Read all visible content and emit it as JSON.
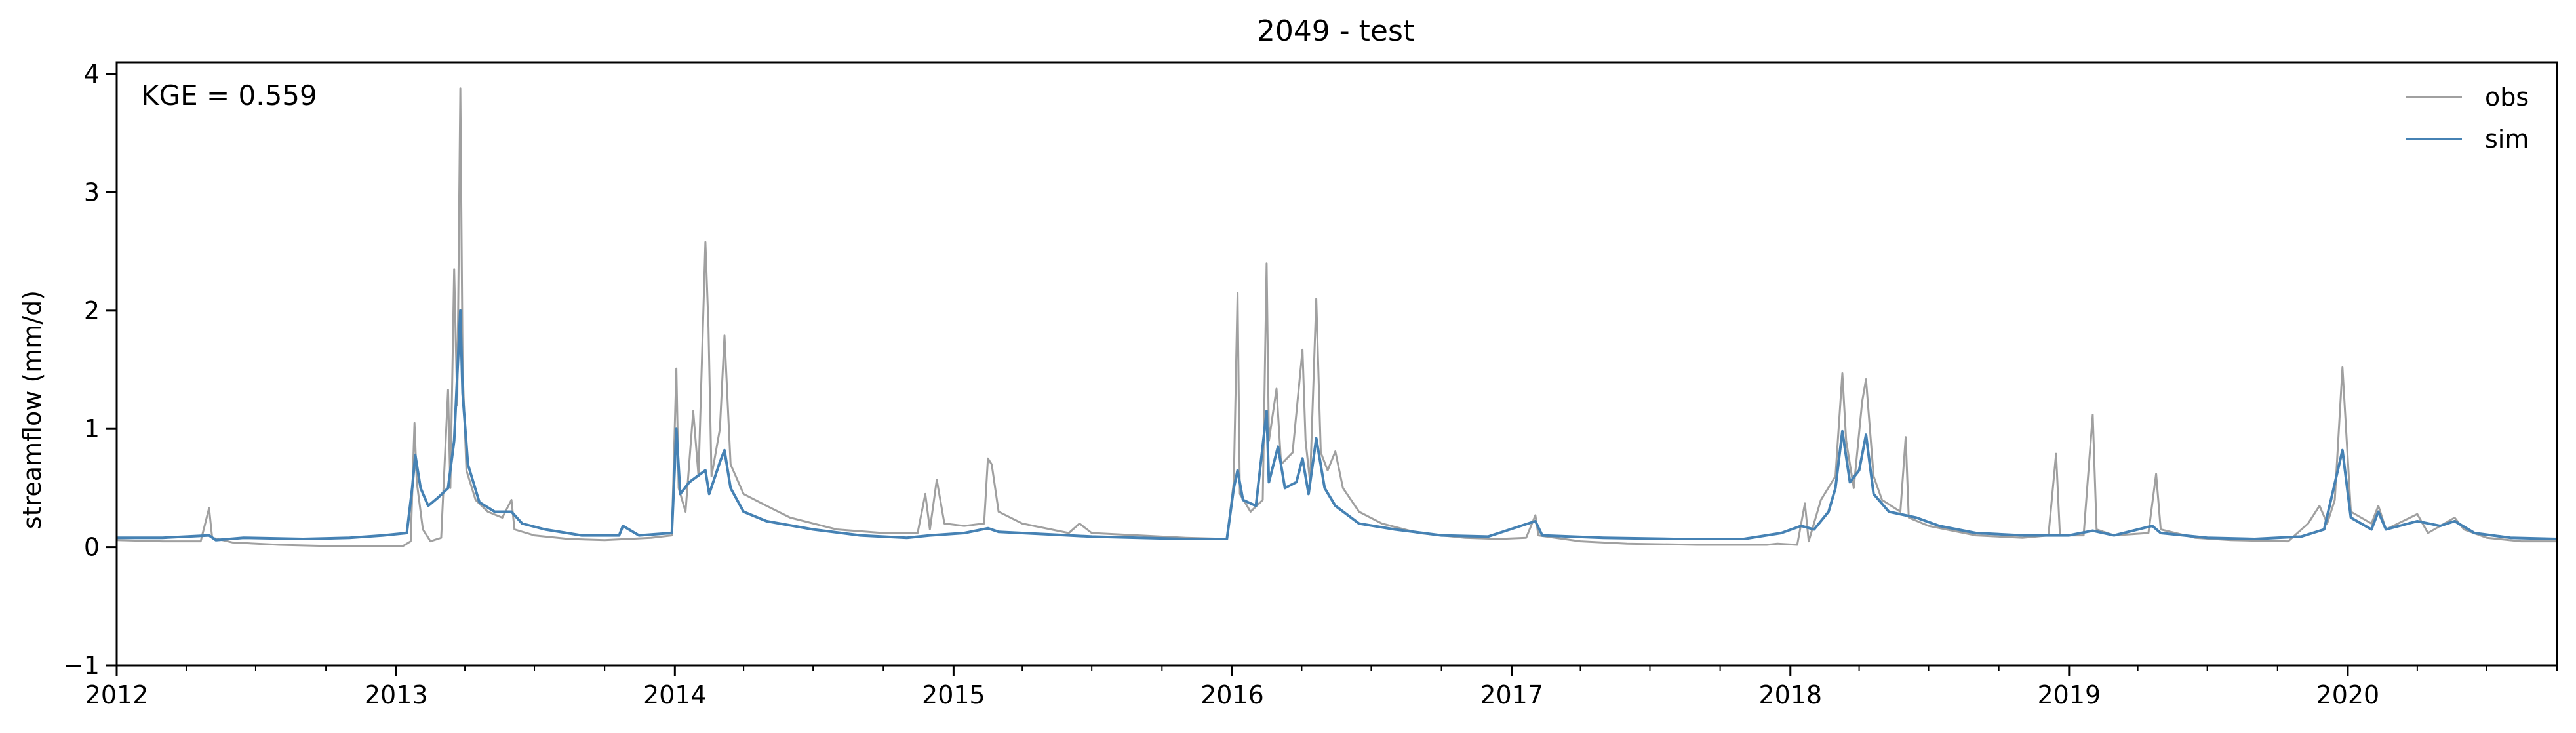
{
  "chart_data": {
    "type": "line",
    "title": "2049 - test",
    "xlabel": "",
    "ylabel": "streamflow (mm/d)",
    "annotation": "KGE = 0.559",
    "xlim": [
      "2012-01-01",
      "2020-10-01"
    ],
    "ylim": [
      -1,
      4.1
    ],
    "x_ticks": [
      "2012",
      "2013",
      "2014",
      "2015",
      "2016",
      "2017",
      "2018",
      "2019",
      "2020"
    ],
    "y_ticks": [
      "−1",
      "0",
      "1",
      "2",
      "3",
      "4"
    ],
    "grid": false,
    "legend_position": "top-right",
    "colors": {
      "obs": "#a0a0a0",
      "sim": "#4682b4"
    },
    "series": [
      {
        "name": "obs",
        "color": "#a0a0a0",
        "points": [
          [
            "2012-01-01",
            0.06
          ],
          [
            "2012-03-01",
            0.05
          ],
          [
            "2012-04-20",
            0.05
          ],
          [
            "2012-05-01",
            0.33
          ],
          [
            "2012-05-05",
            0.08
          ],
          [
            "2012-06-01",
            0.04
          ],
          [
            "2012-08-01",
            0.02
          ],
          [
            "2012-10-01",
            0.01
          ],
          [
            "2012-12-15",
            0.01
          ],
          [
            "2013-01-10",
            0.01
          ],
          [
            "2013-01-20",
            0.05
          ],
          [
            "2013-01-25",
            1.05
          ],
          [
            "2013-01-28",
            0.55
          ],
          [
            "2013-02-05",
            0.15
          ],
          [
            "2013-02-15",
            0.05
          ],
          [
            "2013-03-01",
            0.08
          ],
          [
            "2013-03-10",
            1.33
          ],
          [
            "2013-03-13",
            0.5
          ],
          [
            "2013-03-18",
            2.35
          ],
          [
            "2013-03-22",
            1.2
          ],
          [
            "2013-03-26",
            3.88
          ],
          [
            "2013-03-29",
            1.5
          ],
          [
            "2013-04-03",
            0.65
          ],
          [
            "2013-04-15",
            0.4
          ],
          [
            "2013-05-01",
            0.3
          ],
          [
            "2013-05-20",
            0.25
          ],
          [
            "2013-06-01",
            0.4
          ],
          [
            "2013-06-05",
            0.15
          ],
          [
            "2013-07-01",
            0.1
          ],
          [
            "2013-08-15",
            0.07
          ],
          [
            "2013-10-01",
            0.06
          ],
          [
            "2013-12-01",
            0.08
          ],
          [
            "2013-12-28",
            0.1
          ],
          [
            "2014-01-03",
            1.51
          ],
          [
            "2014-01-06",
            0.5
          ],
          [
            "2014-01-15",
            0.3
          ],
          [
            "2014-01-25",
            1.15
          ],
          [
            "2014-02-01",
            0.6
          ],
          [
            "2014-02-10",
            2.58
          ],
          [
            "2014-02-14",
            1.86
          ],
          [
            "2014-02-18",
            0.6
          ],
          [
            "2014-03-01",
            1.0
          ],
          [
            "2014-03-07",
            1.79
          ],
          [
            "2014-03-15",
            0.7
          ],
          [
            "2014-04-01",
            0.45
          ],
          [
            "2014-05-01",
            0.35
          ],
          [
            "2014-06-01",
            0.25
          ],
          [
            "2014-08-01",
            0.15
          ],
          [
            "2014-10-01",
            0.12
          ],
          [
            "2014-11-15",
            0.12
          ],
          [
            "2014-11-25",
            0.45
          ],
          [
            "2014-12-01",
            0.15
          ],
          [
            "2014-12-10",
            0.57
          ],
          [
            "2014-12-20",
            0.2
          ],
          [
            "2015-01-15",
            0.18
          ],
          [
            "2015-02-10",
            0.2
          ],
          [
            "2015-02-15",
            0.75
          ],
          [
            "2015-02-20",
            0.7
          ],
          [
            "2015-03-01",
            0.3
          ],
          [
            "2015-04-01",
            0.2
          ],
          [
            "2015-06-01",
            0.12
          ],
          [
            "2015-06-15",
            0.2
          ],
          [
            "2015-07-01",
            0.12
          ],
          [
            "2015-09-01",
            0.1
          ],
          [
            "2015-11-01",
            0.08
          ],
          [
            "2015-12-25",
            0.07
          ],
          [
            "2016-01-03",
            0.55
          ],
          [
            "2016-01-08",
            2.15
          ],
          [
            "2016-01-11",
            0.45
          ],
          [
            "2016-01-25",
            0.3
          ],
          [
            "2016-02-10",
            0.4
          ],
          [
            "2016-02-15",
            2.4
          ],
          [
            "2016-02-18",
            0.9
          ],
          [
            "2016-02-28",
            1.34
          ],
          [
            "2016-03-05",
            0.7
          ],
          [
            "2016-03-20",
            0.8
          ],
          [
            "2016-04-02",
            1.67
          ],
          [
            "2016-04-06",
            0.9
          ],
          [
            "2016-04-12",
            0.55
          ],
          [
            "2016-04-20",
            2.1
          ],
          [
            "2016-04-26",
            0.8
          ],
          [
            "2016-05-05",
            0.65
          ],
          [
            "2016-05-15",
            0.81
          ],
          [
            "2016-05-25",
            0.5
          ],
          [
            "2016-06-15",
            0.3
          ],
          [
            "2016-07-15",
            0.2
          ],
          [
            "2016-09-01",
            0.12
          ],
          [
            "2016-11-01",
            0.08
          ],
          [
            "2016-12-15",
            0.07
          ],
          [
            "2017-01-20",
            0.08
          ],
          [
            "2017-02-01",
            0.27
          ],
          [
            "2017-02-05",
            0.1
          ],
          [
            "2017-04-01",
            0.05
          ],
          [
            "2017-06-01",
            0.03
          ],
          [
            "2017-09-01",
            0.02
          ],
          [
            "2017-12-01",
            0.02
          ],
          [
            "2017-12-15",
            0.03
          ],
          [
            "2018-01-10",
            0.02
          ],
          [
            "2018-01-20",
            0.37
          ],
          [
            "2018-01-25",
            0.05
          ],
          [
            "2018-02-10",
            0.4
          ],
          [
            "2018-03-01",
            0.6
          ],
          [
            "2018-03-10",
            1.47
          ],
          [
            "2018-03-15",
            0.9
          ],
          [
            "2018-03-25",
            0.5
          ],
          [
            "2018-04-05",
            1.23
          ],
          [
            "2018-04-10",
            1.42
          ],
          [
            "2018-04-20",
            0.6
          ],
          [
            "2018-05-01",
            0.4
          ],
          [
            "2018-05-25",
            0.3
          ],
          [
            "2018-06-01",
            0.93
          ],
          [
            "2018-06-05",
            0.25
          ],
          [
            "2018-07-01",
            0.18
          ],
          [
            "2018-09-01",
            0.1
          ],
          [
            "2018-11-01",
            0.08
          ],
          [
            "2018-12-05",
            0.1
          ],
          [
            "2018-12-15",
            0.79
          ],
          [
            "2018-12-20",
            0.1
          ],
          [
            "2019-01-20",
            0.1
          ],
          [
            "2019-02-01",
            1.12
          ],
          [
            "2019-02-06",
            0.15
          ],
          [
            "2019-03-01",
            0.1
          ],
          [
            "2019-04-15",
            0.12
          ],
          [
            "2019-04-25",
            0.62
          ],
          [
            "2019-05-01",
            0.15
          ],
          [
            "2019-06-15",
            0.08
          ],
          [
            "2019-08-01",
            0.06
          ],
          [
            "2019-10-15",
            0.05
          ],
          [
            "2019-11-10",
            0.2
          ],
          [
            "2019-11-25",
            0.35
          ],
          [
            "2019-12-05",
            0.2
          ],
          [
            "2019-12-15",
            0.4
          ],
          [
            "2019-12-25",
            1.52
          ],
          [
            "2020-01-05",
            0.3
          ],
          [
            "2020-02-01",
            0.2
          ],
          [
            "2020-02-10",
            0.35
          ],
          [
            "2020-02-20",
            0.15
          ],
          [
            "2020-04-01",
            0.28
          ],
          [
            "2020-04-15",
            0.12
          ],
          [
            "2020-05-20",
            0.25
          ],
          [
            "2020-06-01",
            0.15
          ],
          [
            "2020-07-01",
            0.08
          ],
          [
            "2020-08-15",
            0.05
          ],
          [
            "2020-10-01",
            0.05
          ]
        ]
      },
      {
        "name": "sim",
        "color": "#4682b4",
        "points": [
          [
            "2012-01-01",
            0.08
          ],
          [
            "2012-03-01",
            0.08
          ],
          [
            "2012-05-01",
            0.1
          ],
          [
            "2012-05-10",
            0.06
          ],
          [
            "2012-06-15",
            0.08
          ],
          [
            "2012-09-01",
            0.07
          ],
          [
            "2012-11-01",
            0.08
          ],
          [
            "2012-12-15",
            0.1
          ],
          [
            "2013-01-15",
            0.12
          ],
          [
            "2013-01-22",
            0.5
          ],
          [
            "2013-01-26",
            0.78
          ],
          [
            "2013-02-02",
            0.5
          ],
          [
            "2013-02-12",
            0.35
          ],
          [
            "2013-02-25",
            0.42
          ],
          [
            "2013-03-10",
            0.5
          ],
          [
            "2013-03-18",
            0.9
          ],
          [
            "2013-03-26",
            2.0
          ],
          [
            "2013-03-29",
            1.3
          ],
          [
            "2013-04-05",
            0.7
          ],
          [
            "2013-04-20",
            0.38
          ],
          [
            "2013-05-10",
            0.3
          ],
          [
            "2013-06-01",
            0.3
          ],
          [
            "2013-06-15",
            0.2
          ],
          [
            "2013-07-15",
            0.15
          ],
          [
            "2013-09-01",
            0.1
          ],
          [
            "2013-10-20",
            0.1
          ],
          [
            "2013-10-25",
            0.18
          ],
          [
            "2013-11-15",
            0.1
          ],
          [
            "2013-12-28",
            0.12
          ],
          [
            "2014-01-03",
            1.0
          ],
          [
            "2014-01-08",
            0.45
          ],
          [
            "2014-01-20",
            0.55
          ],
          [
            "2014-02-10",
            0.65
          ],
          [
            "2014-02-15",
            0.45
          ],
          [
            "2014-03-01",
            0.72
          ],
          [
            "2014-03-07",
            0.82
          ],
          [
            "2014-03-15",
            0.5
          ],
          [
            "2014-04-01",
            0.3
          ],
          [
            "2014-05-01",
            0.22
          ],
          [
            "2014-07-01",
            0.15
          ],
          [
            "2014-09-01",
            0.1
          ],
          [
            "2014-11-01",
            0.08
          ],
          [
            "2014-12-01",
            0.1
          ],
          [
            "2015-01-15",
            0.12
          ],
          [
            "2015-02-15",
            0.16
          ],
          [
            "2015-03-01",
            0.13
          ],
          [
            "2015-05-01",
            0.11
          ],
          [
            "2015-07-01",
            0.09
          ],
          [
            "2015-09-01",
            0.08
          ],
          [
            "2015-11-01",
            0.07
          ],
          [
            "2015-12-25",
            0.07
          ],
          [
            "2016-01-03",
            0.5
          ],
          [
            "2016-01-08",
            0.65
          ],
          [
            "2016-01-15",
            0.4
          ],
          [
            "2016-02-01",
            0.35
          ],
          [
            "2016-02-15",
            1.15
          ],
          [
            "2016-02-18",
            0.55
          ],
          [
            "2016-03-01",
            0.85
          ],
          [
            "2016-03-10",
            0.5
          ],
          [
            "2016-03-25",
            0.55
          ],
          [
            "2016-04-02",
            0.75
          ],
          [
            "2016-04-10",
            0.45
          ],
          [
            "2016-04-20",
            0.92
          ],
          [
            "2016-05-01",
            0.5
          ],
          [
            "2016-05-15",
            0.35
          ],
          [
            "2016-06-15",
            0.2
          ],
          [
            "2016-08-01",
            0.15
          ],
          [
            "2016-10-01",
            0.1
          ],
          [
            "2016-12-01",
            0.09
          ],
          [
            "2017-02-01",
            0.22
          ],
          [
            "2017-02-10",
            0.1
          ],
          [
            "2017-05-01",
            0.08
          ],
          [
            "2017-08-01",
            0.07
          ],
          [
            "2017-11-01",
            0.07
          ],
          [
            "2017-12-20",
            0.12
          ],
          [
            "2018-01-15",
            0.18
          ],
          [
            "2018-02-01",
            0.15
          ],
          [
            "2018-02-20",
            0.3
          ],
          [
            "2018-03-01",
            0.5
          ],
          [
            "2018-03-10",
            0.98
          ],
          [
            "2018-03-20",
            0.55
          ],
          [
            "2018-04-01",
            0.65
          ],
          [
            "2018-04-10",
            0.95
          ],
          [
            "2018-04-20",
            0.45
          ],
          [
            "2018-05-10",
            0.3
          ],
          [
            "2018-06-15",
            0.25
          ],
          [
            "2018-07-15",
            0.18
          ],
          [
            "2018-09-01",
            0.12
          ],
          [
            "2018-11-01",
            0.1
          ],
          [
            "2019-01-01",
            0.1
          ],
          [
            "2019-02-01",
            0.14
          ],
          [
            "2019-03-01",
            0.1
          ],
          [
            "2019-04-20",
            0.18
          ],
          [
            "2019-05-01",
            0.12
          ],
          [
            "2019-07-01",
            0.08
          ],
          [
            "2019-09-01",
            0.07
          ],
          [
            "2019-11-01",
            0.09
          ],
          [
            "2019-12-01",
            0.15
          ],
          [
            "2019-12-25",
            0.82
          ],
          [
            "2020-01-05",
            0.25
          ],
          [
            "2020-02-01",
            0.15
          ],
          [
            "2020-02-10",
            0.3
          ],
          [
            "2020-02-20",
            0.15
          ],
          [
            "2020-04-01",
            0.22
          ],
          [
            "2020-05-01",
            0.18
          ],
          [
            "2020-05-20",
            0.22
          ],
          [
            "2020-06-15",
            0.12
          ],
          [
            "2020-08-01",
            0.08
          ],
          [
            "2020-10-01",
            0.07
          ]
        ]
      }
    ]
  }
}
